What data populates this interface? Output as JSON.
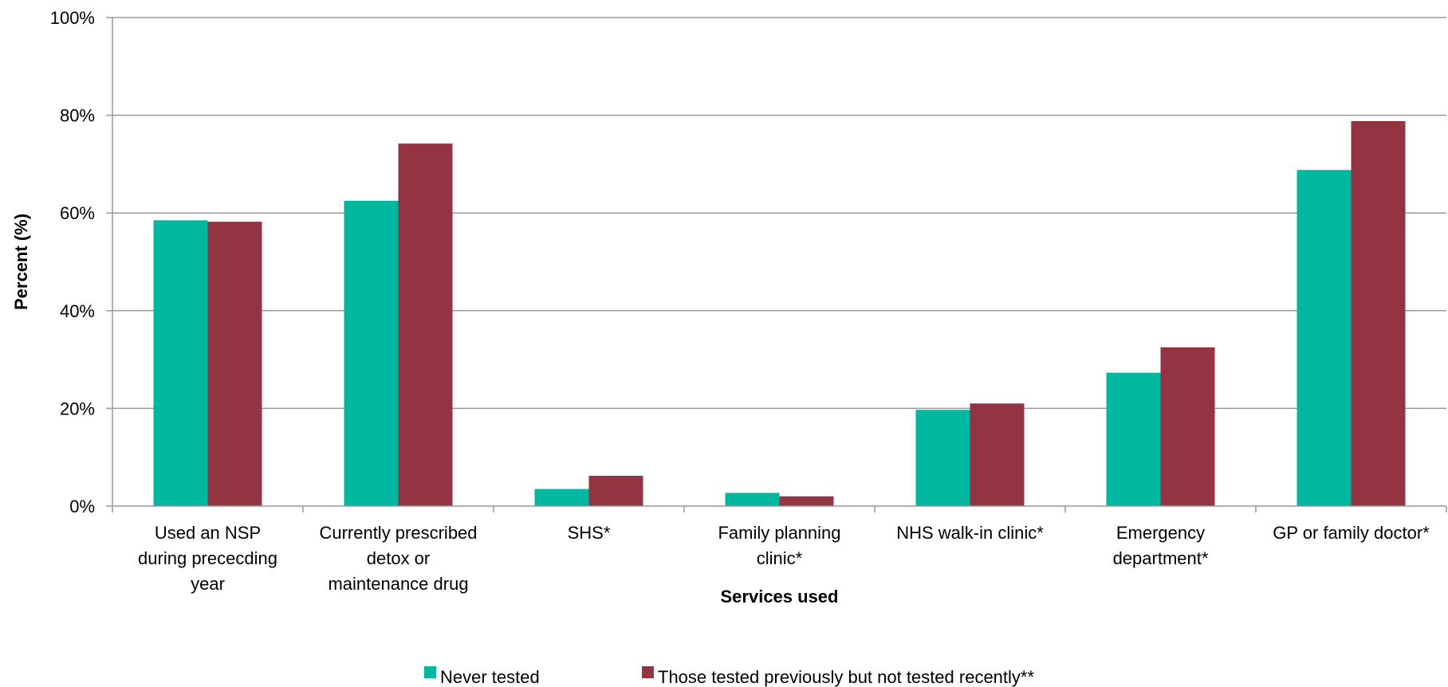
{
  "chart_data": {
    "type": "bar",
    "title": "",
    "xlabel": "Services used",
    "ylabel": "Percent (%)",
    "ylim": [
      0,
      100
    ],
    "yticks": [
      "0%",
      "20%",
      "40%",
      "60%",
      "80%",
      "100%"
    ],
    "ytick_values": [
      0,
      20,
      40,
      60,
      80,
      100
    ],
    "categories": [
      [
        "Used an NSP",
        "during prececding",
        "year"
      ],
      [
        "Currently prescribed",
        "detox or",
        "maintenance drug"
      ],
      [
        "SHS*"
      ],
      [
        "Family planning",
        "clinic*"
      ],
      [
        "NHS walk-in clinic*"
      ],
      [
        "Emergency",
        "department*"
      ],
      [
        "GP or family doctor*"
      ]
    ],
    "series": [
      {
        "name": "Never tested",
        "color": "#00B8A0",
        "values": [
          58.5,
          62.5,
          3.5,
          2.7,
          19.7,
          27.3,
          68.8
        ]
      },
      {
        "name": "Those tested previously but not tested recently**",
        "color": "#943442",
        "values": [
          58.2,
          74.2,
          6.2,
          2.0,
          21.0,
          32.5,
          78.8
        ]
      }
    ],
    "grid": true,
    "legend_position": "bottom"
  }
}
